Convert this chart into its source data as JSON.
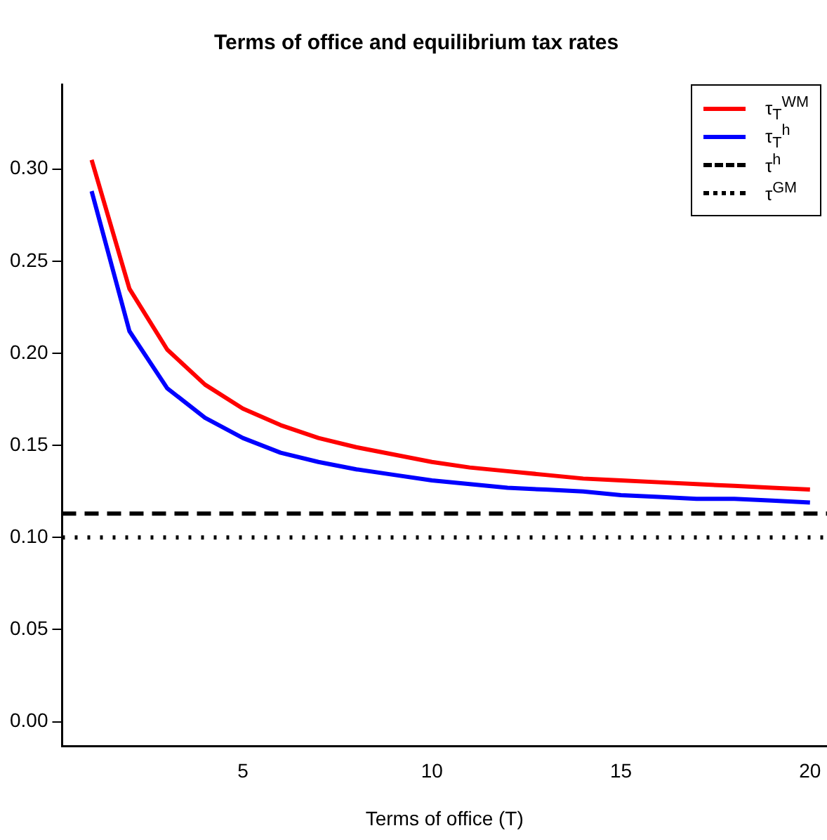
{
  "chart_data": {
    "type": "line",
    "title": "Terms of office and equilibrium tax rates",
    "xlabel": "Terms of office (T)",
    "x": [
      1,
      2,
      3,
      4,
      5,
      6,
      7,
      8,
      9,
      10,
      11,
      12,
      13,
      14,
      15,
      16,
      17,
      18,
      19,
      20
    ],
    "series": [
      {
        "name": "τ$_{T}$$^{WM}$",
        "color": "#ff0000",
        "values": [
          0.305,
          0.235,
          0.202,
          0.183,
          0.17,
          0.161,
          0.154,
          0.149,
          0.145,
          0.141,
          0.138,
          0.136,
          0.134,
          0.132,
          0.131,
          0.13,
          0.129,
          0.128,
          0.127,
          0.126
        ]
      },
      {
        "name": "τ$_{T}$$^{h}$",
        "color": "#0000ff",
        "values": [
          0.288,
          0.212,
          0.181,
          0.165,
          0.154,
          0.146,
          0.141,
          0.137,
          0.134,
          0.131,
          0.129,
          0.127,
          0.126,
          0.125,
          0.123,
          0.122,
          0.121,
          0.121,
          0.12,
          0.119
        ]
      }
    ],
    "ref_lines": [
      {
        "axis": "y",
        "value": 0.113,
        "label": "τ$^{h}$",
        "color": "#000000",
        "line_style": "dashed"
      },
      {
        "axis": "y",
        "value": 0.1,
        "label": "τ$^{GM}$",
        "color": "#000000",
        "line_style": "dotted"
      }
    ],
    "xlim": [
      0.22,
      20.45
    ],
    "ylim": [
      -0.0134,
      0.346
    ],
    "xticks": [
      5,
      10,
      15,
      20
    ],
    "yticks": [
      {
        "value": 0,
        "label": "0.00"
      },
      {
        "value": 0.05,
        "label": "0.05"
      },
      {
        "value": 0.1,
        "label": "0.10"
      },
      {
        "value": 0.15,
        "label": "0.15"
      },
      {
        "value": 0.2,
        "label": "0.20"
      },
      {
        "value": 0.25,
        "label": "0.25"
      },
      {
        "value": 0.3,
        "label": "0.30"
      }
    ],
    "grid": false,
    "legend": "top right",
    "marker": "none",
    "line_style": "solid"
  }
}
